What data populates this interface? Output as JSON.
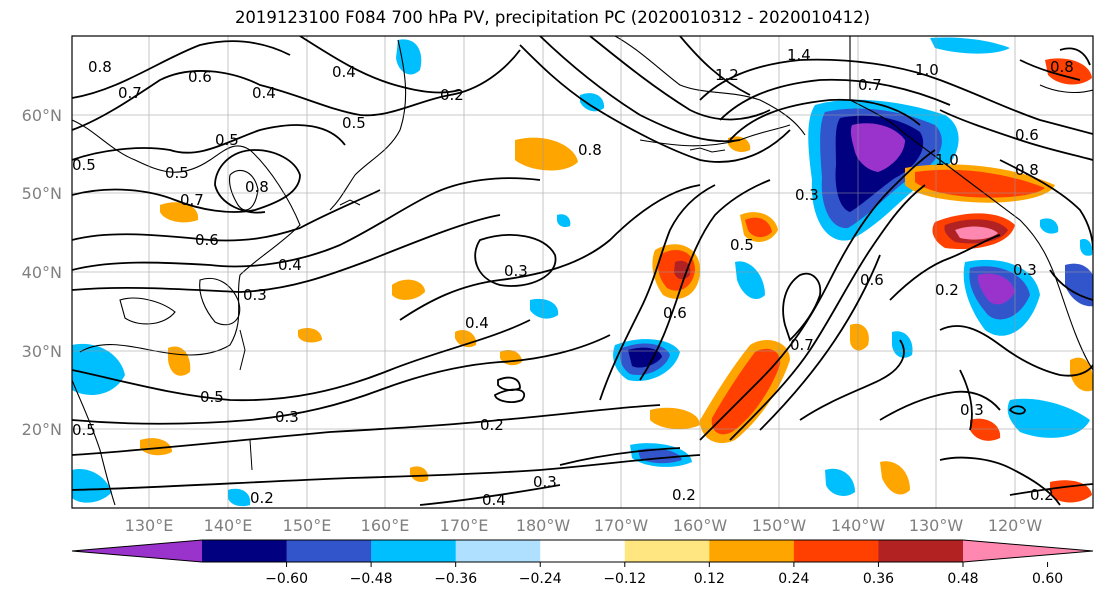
{
  "title": "2019123100 F084 700 hPa PV, precipitation PC (2020010312 - 2020010412)",
  "lat_labels": [
    "60°N",
    "50°N",
    "40°N",
    "30°N",
    "20°N"
  ],
  "lon_labels": [
    "130°E",
    "140°E",
    "150°E",
    "160°E",
    "170°E",
    "180°W",
    "170°W",
    "160°W",
    "150°W",
    "140°W",
    "130°W",
    "120°W"
  ],
  "colorbar": {
    "colors": [
      "#9933cc",
      "#000080",
      "#3355cc",
      "#00bfff",
      "#b0e0ff",
      "#ffffff",
      "#ffe680",
      "#ffa500",
      "#ff4000",
      "#b22222",
      "#ff88b0"
    ],
    "tick_labels": [
      "−0.60",
      "−0.48",
      "−0.36",
      "−0.24",
      "−0.12",
      "0.12",
      "0.24",
      "0.36",
      "0.48",
      "0.60"
    ]
  },
  "contour_labels": [
    "0.8",
    "0.7",
    "0.6",
    "0.4",
    "0.5",
    "0.2",
    "0.4",
    "0.5",
    "1.2",
    "1.4",
    "1.0",
    "0.7",
    "0.8",
    "0.6",
    "0.5",
    "0.5",
    "0.8",
    "0.7",
    "0.6",
    "0.4",
    "0.3",
    "0.3",
    "0.4",
    "0.6",
    "0.8",
    "0.3",
    "0.5",
    "0.6",
    "0.7",
    "0.2",
    "0.3",
    "0.5",
    "0.3",
    "0.2",
    "0.3",
    "0.4",
    "0.2",
    "0.3",
    "0.2",
    "0.2",
    "0.5",
    "1.0",
    "0.8"
  ]
}
